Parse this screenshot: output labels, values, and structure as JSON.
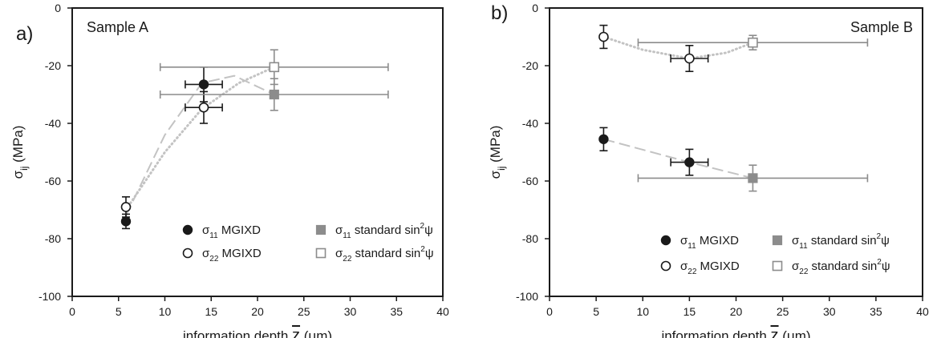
{
  "chart_data": [
    {
      "type": "scatter",
      "panel_label": "a)",
      "title": "Sample A",
      "xlabel": "information depth z (μm)",
      "ylabel": "σij (MPa)",
      "xlim": [
        0,
        40
      ],
      "ylim": [
        -100,
        0
      ],
      "x_ticks": [
        "0",
        "5",
        "10",
        "15",
        "20",
        "25",
        "30",
        "35",
        "40"
      ],
      "y_ticks": [
        "0",
        "-20",
        "-40",
        "-60",
        "-80",
        "-100"
      ],
      "grid": false,
      "legend_position": "bottom-right",
      "series": [
        {
          "name": "σ11 MGIXD",
          "marker": "filled-circle",
          "color": "#1a1a1a",
          "points": [
            {
              "x": 5.8,
              "y": -74,
              "yerr": 2.5,
              "xerr": 0
            },
            {
              "x": 14.2,
              "y": -26.5,
              "yerr": 6,
              "xerr": 2
            }
          ]
        },
        {
          "name": "σ22 MGIXD",
          "marker": "open-circle",
          "color": "#1a1a1a",
          "points": [
            {
              "x": 5.8,
              "y": -69,
              "yerr": 3.5,
              "xerr": 0
            },
            {
              "x": 14.2,
              "y": -34.5,
              "yerr": 5.5,
              "xerr": 2
            }
          ]
        },
        {
          "name": "σ11 standard sin2ψ",
          "marker": "filled-square",
          "color": "#8c8c8c",
          "points": [
            {
              "x": 21.8,
              "y": -30,
              "yerr": 5.5,
              "xerr": 12.3
            }
          ]
        },
        {
          "name": "σ22 standard sin2ψ",
          "marker": "open-square",
          "color": "#8c8c8c",
          "points": [
            {
              "x": 21.8,
              "y": -20.5,
              "yerr": 6,
              "xerr": 12.3
            }
          ]
        }
      ],
      "trend_lines": [
        {
          "style": "dashed",
          "color": "#c3c3c3",
          "points": [
            [
              5.8,
              -72
            ],
            [
              10,
              -44
            ],
            [
              14,
              -26
            ],
            [
              17.5,
              -23.5
            ],
            [
              21.8,
              -30
            ]
          ]
        },
        {
          "style": "dotted",
          "color": "#c3c3c3",
          "points": [
            [
              5.8,
              -70
            ],
            [
              10,
              -50
            ],
            [
              14,
              -35
            ],
            [
              18,
              -26
            ],
            [
              21.8,
              -20.5
            ]
          ]
        }
      ]
    },
    {
      "type": "scatter",
      "panel_label": "b)",
      "title": "Sample B",
      "xlabel": "information depth z (μm)",
      "ylabel": "σij (MPa)",
      "xlim": [
        0,
        40
      ],
      "ylim": [
        -100,
        0
      ],
      "x_ticks": [
        "0",
        "5",
        "10",
        "15",
        "20",
        "25",
        "30",
        "35",
        "40"
      ],
      "y_ticks": [
        "0",
        "-20",
        "-40",
        "-60",
        "-80",
        "-100"
      ],
      "grid": false,
      "legend_position": "bottom-center",
      "series": [
        {
          "name": "σ11 MGIXD",
          "marker": "filled-circle",
          "color": "#1a1a1a",
          "points": [
            {
              "x": 5.8,
              "y": -45.5,
              "yerr": 4,
              "xerr": 0
            },
            {
              "x": 15,
              "y": -53.5,
              "yerr": 4.5,
              "xerr": 2
            }
          ]
        },
        {
          "name": "σ22 MGIXD",
          "marker": "open-circle",
          "color": "#1a1a1a",
          "points": [
            {
              "x": 5.8,
              "y": -10,
              "yerr": 4,
              "xerr": 0
            },
            {
              "x": 15,
              "y": -17.5,
              "yerr": 4.5,
              "xerr": 2
            }
          ]
        },
        {
          "name": "σ11 standard sin2ψ",
          "marker": "filled-square",
          "color": "#8c8c8c",
          "points": [
            {
              "x": 21.8,
              "y": -59,
              "yerr": 4.5,
              "xerr": 12.3
            }
          ]
        },
        {
          "name": "σ22 standard sin2ψ",
          "marker": "open-square",
          "color": "#8c8c8c",
          "points": [
            {
              "x": 21.8,
              "y": -12,
              "yerr": 2.5,
              "xerr": 12.3
            }
          ]
        }
      ],
      "trend_lines": [
        {
          "style": "dashed",
          "color": "#c3c3c3",
          "points": [
            [
              5.8,
              -45.5
            ],
            [
              15,
              -53.5
            ],
            [
              21.8,
              -59
            ]
          ]
        },
        {
          "style": "dotted",
          "color": "#c3c3c3",
          "points": [
            [
              5.8,
              -10
            ],
            [
              10,
              -14.5
            ],
            [
              15,
              -17.5
            ],
            [
              19,
              -15.5
            ],
            [
              21.8,
              -12
            ]
          ]
        }
      ]
    }
  ]
}
